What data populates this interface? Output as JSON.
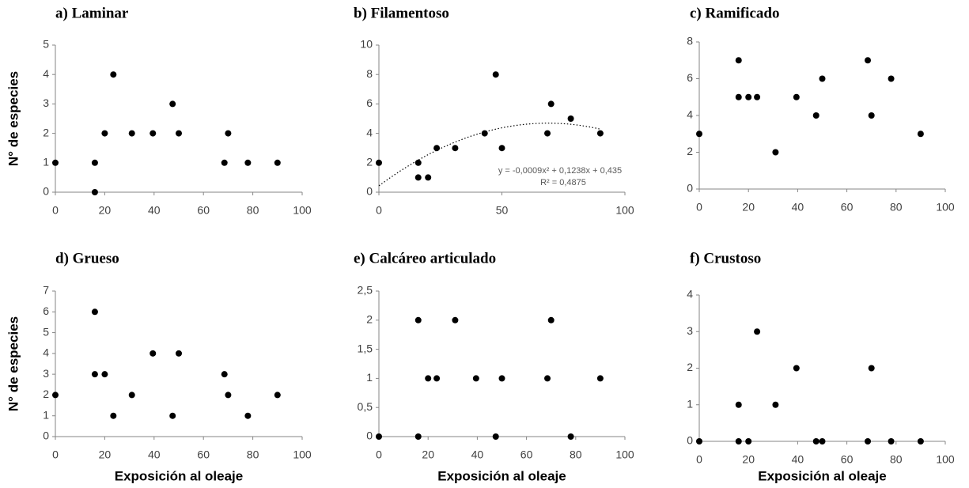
{
  "chart_data": [
    {
      "type": "scatter",
      "title": "a) Laminar",
      "ylabel": "N° de especies",
      "x": [
        0,
        16,
        16,
        20,
        23.5,
        31,
        39.5,
        47.5,
        50,
        68.5,
        70,
        78,
        90
      ],
      "values": [
        1,
        1,
        0,
        2,
        4,
        2,
        2,
        3,
        2,
        1,
        2,
        1,
        1
      ],
      "xlim": [
        0,
        100
      ],
      "xticks": [
        0,
        20,
        40,
        60,
        80,
        100
      ],
      "ylim": [
        0,
        5
      ],
      "yticks": [
        0,
        1,
        2,
        3,
        4,
        5
      ],
      "color": "#000000"
    },
    {
      "type": "scatter",
      "title": "b) Filamentoso",
      "x": [
        0,
        16,
        16,
        20,
        23.5,
        31,
        43,
        47.5,
        50,
        68.5,
        70,
        78,
        90
      ],
      "values": [
        2,
        2,
        1,
        1,
        3,
        3,
        4,
        8,
        3,
        4,
        6,
        5,
        4
      ],
      "xlim": [
        0,
        100
      ],
      "xticks": [
        0,
        50,
        100
      ],
      "ylim": [
        0,
        10
      ],
      "yticks": [
        0,
        2,
        4,
        6,
        8,
        10
      ],
      "color": "#000000",
      "trendline": {
        "coefficients": [
          -0.0009,
          0.1238,
          0.435
        ],
        "equation": "y = -0,0009x² + 0,1238x + 0,435",
        "r2": "R² = 0,4875"
      }
    },
    {
      "type": "scatter",
      "title": "c) Ramificado",
      "x": [
        0,
        16,
        16,
        20,
        23.5,
        31,
        39.5,
        47.5,
        50,
        68.5,
        70,
        78,
        90
      ],
      "values": [
        3,
        7,
        5,
        5,
        5,
        2,
        5,
        4,
        6,
        7,
        4,
        6,
        3
      ],
      "xlim": [
        0,
        100
      ],
      "xticks": [
        0,
        20,
        40,
        60,
        80,
        100
      ],
      "ylim": [
        0,
        8
      ],
      "yticks": [
        0,
        2,
        4,
        6,
        8
      ],
      "color": "#000000"
    },
    {
      "type": "scatter",
      "title": "d) Grueso",
      "ylabel": "N° de especies",
      "xlabel": "Exposición al oleaje",
      "x": [
        0,
        16,
        16,
        20,
        23.5,
        31,
        39.5,
        47.5,
        50,
        68.5,
        70,
        78,
        90
      ],
      "values": [
        2,
        6,
        3,
        3,
        1,
        2,
        4,
        1,
        4,
        3,
        2,
        1,
        2
      ],
      "xlim": [
        0,
        100
      ],
      "xticks": [
        0,
        20,
        40,
        60,
        80,
        100
      ],
      "ylim": [
        0,
        7
      ],
      "yticks": [
        0,
        1,
        2,
        3,
        4,
        5,
        6,
        7
      ],
      "color": "#000000"
    },
    {
      "type": "scatter",
      "title": "e) Calcáreo articulado",
      "xlabel": "Exposición al oleaje",
      "x": [
        0,
        16,
        16,
        20,
        23.5,
        31,
        39.5,
        47.5,
        50,
        68.5,
        70,
        78,
        90
      ],
      "values": [
        0,
        2,
        0,
        1,
        1,
        2,
        1,
        0,
        1,
        1,
        2,
        0,
        1
      ],
      "xlim": [
        0,
        100
      ],
      "xticks": [
        0,
        20,
        40,
        60,
        80,
        100
      ],
      "ylim": [
        0,
        2.5
      ],
      "yticks": [
        0,
        {
          "value": 0.5,
          "label": "0,5"
        },
        1,
        {
          "value": 1.5,
          "label": "1,5"
        },
        2,
        {
          "value": 2.5,
          "label": "2,5"
        }
      ],
      "color": "#000000"
    },
    {
      "type": "scatter",
      "title": "f) Crustoso",
      "xlabel": "Exposición al oleaje",
      "x": [
        0,
        16,
        16,
        20,
        23.5,
        31,
        39.5,
        47.5,
        50,
        68.5,
        70,
        78,
        90
      ],
      "values": [
        0,
        1,
        0,
        0,
        3,
        1,
        2,
        0,
        0,
        0,
        2,
        0,
        0
      ],
      "xlim": [
        0,
        100
      ],
      "xticks": [
        0,
        20,
        40,
        60,
        80,
        100
      ],
      "ylim": [
        0,
        4
      ],
      "yticks": [
        0,
        1,
        2,
        3,
        4
      ],
      "color": "#000000"
    }
  ]
}
